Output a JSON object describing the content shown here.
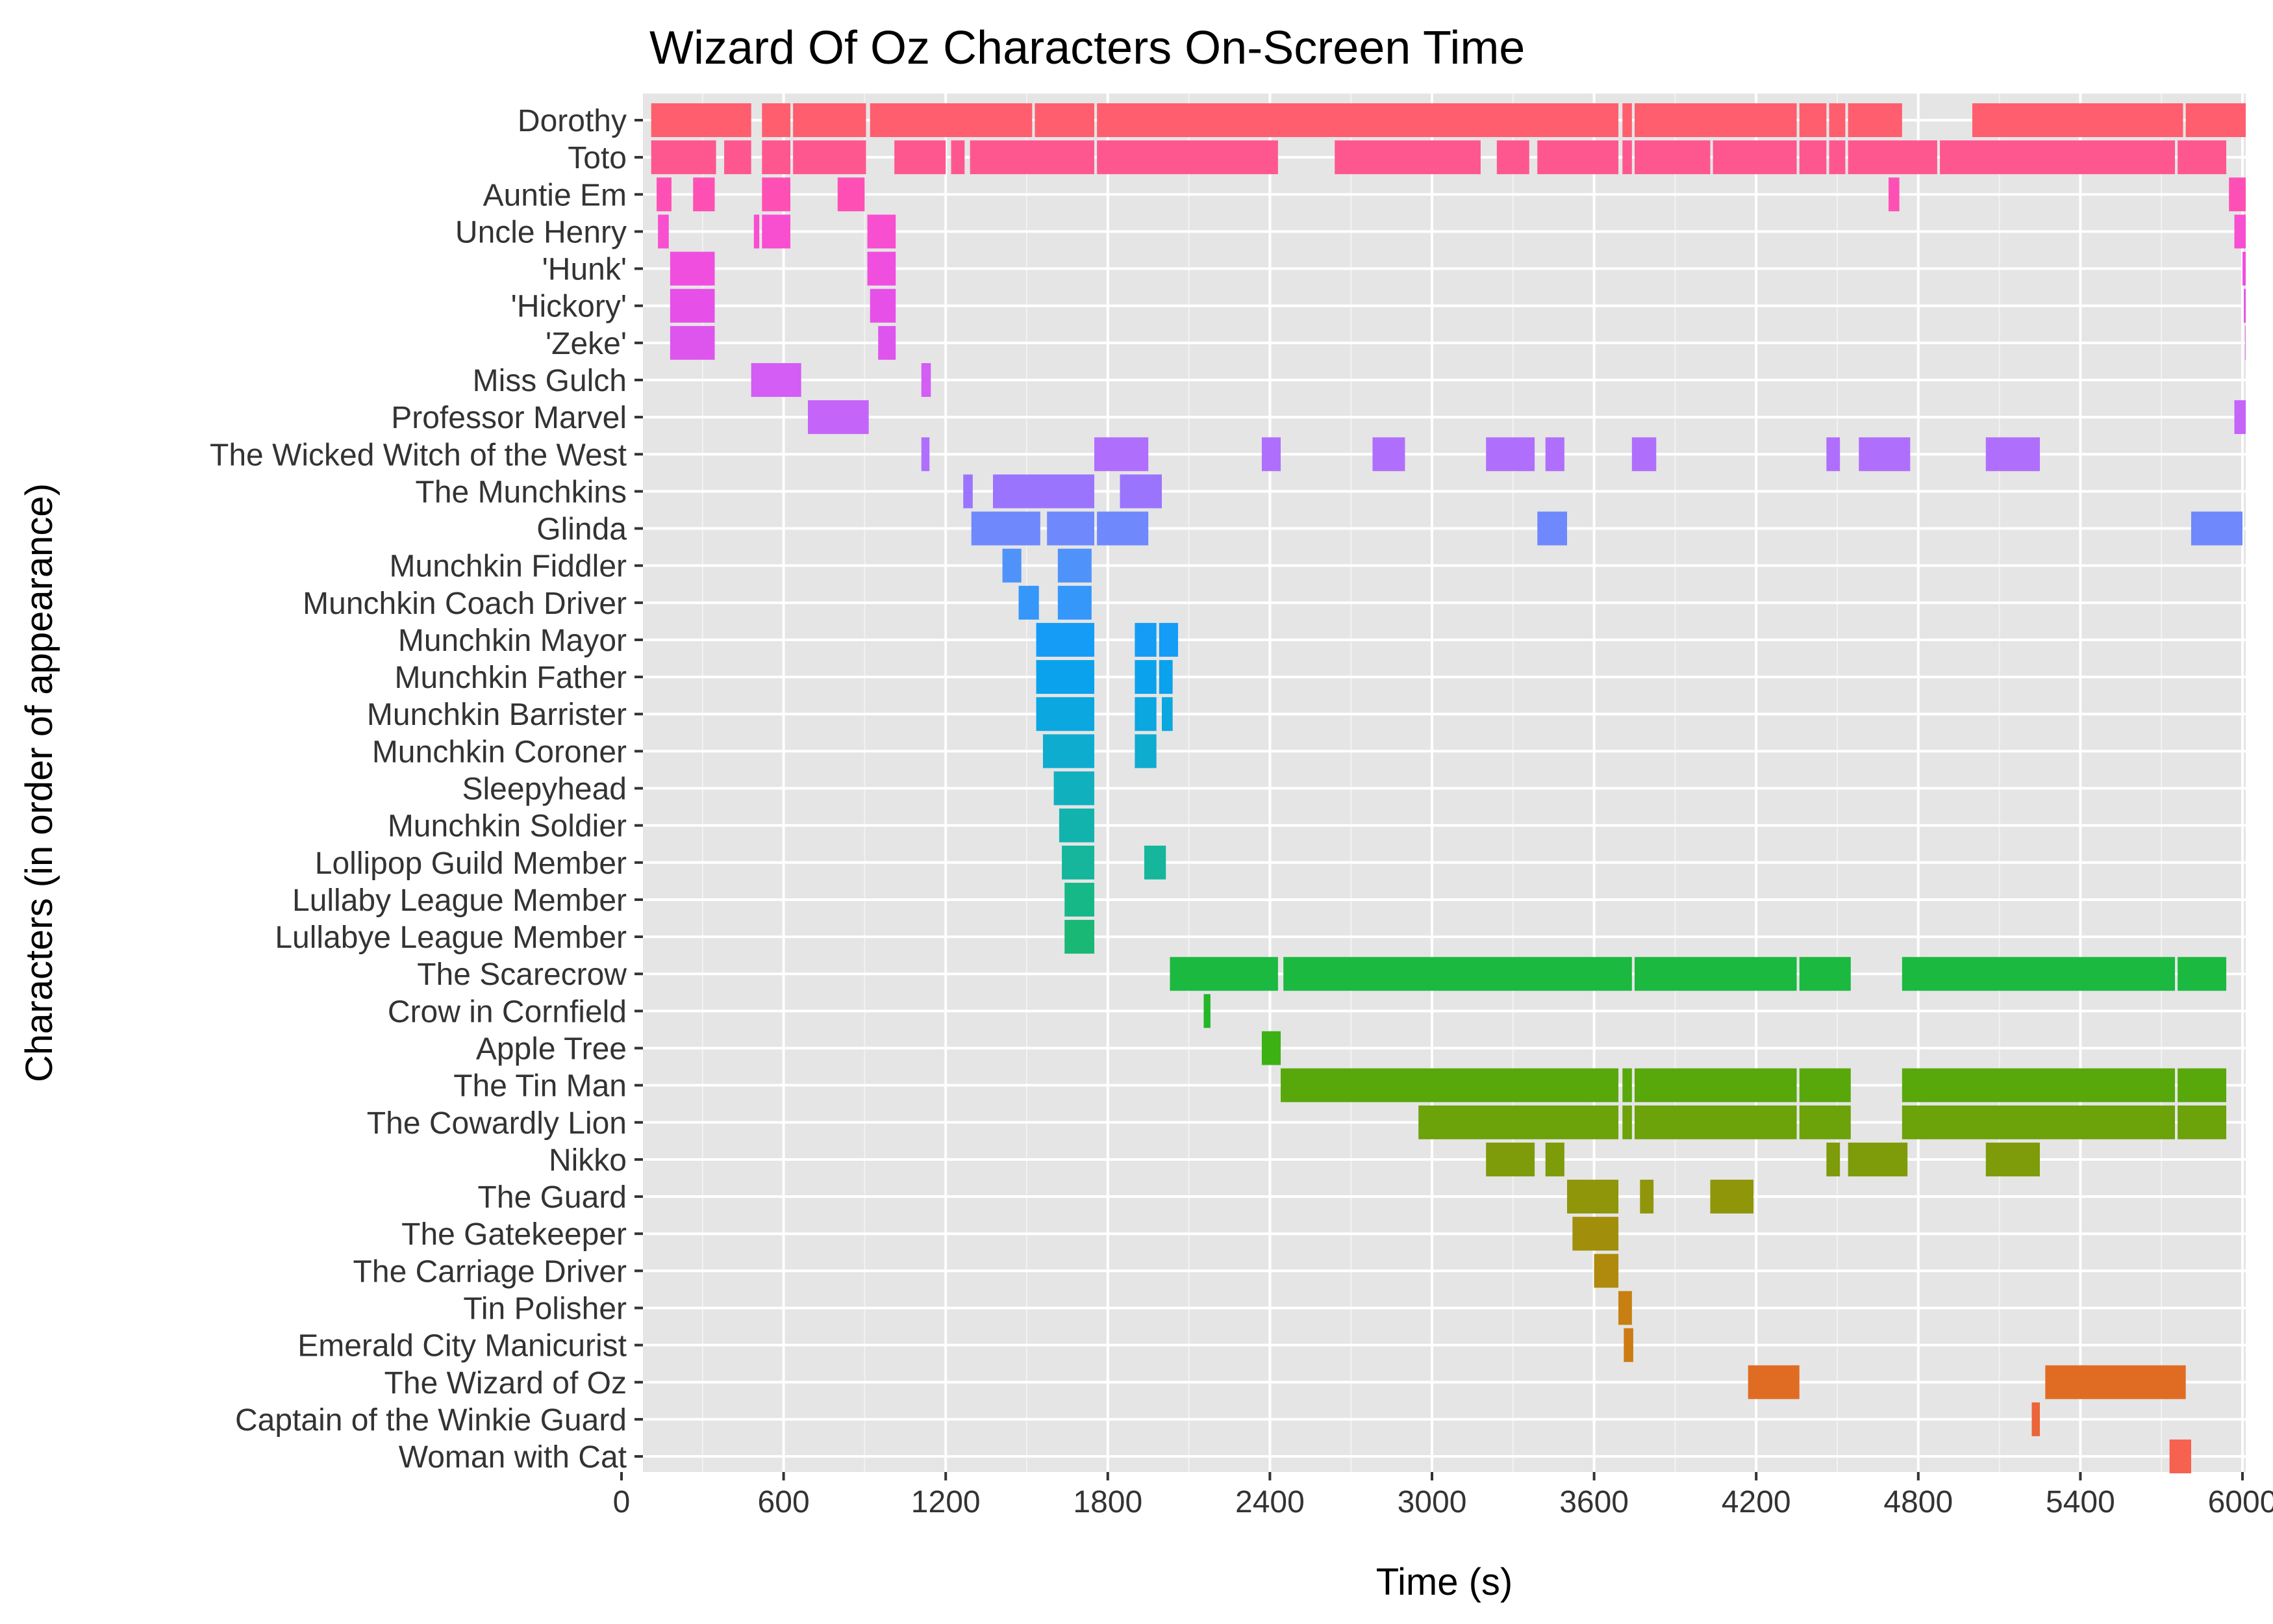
{
  "chart_data": {
    "type": "gantt",
    "title": "Wizard Of Oz Characters On-Screen Time",
    "xlabel": "Time (s)",
    "ylabel": "Characters (in order of appearance)",
    "xlim": [
      0,
      6080
    ],
    "x_ticks": [
      0,
      600,
      1200,
      1800,
      2400,
      3000,
      3600,
      4200,
      4800,
      5400,
      6000
    ],
    "grid": true,
    "legend": "none",
    "series": [
      {
        "name": "Dorothy",
        "color": "#fe5e6e",
        "segments": [
          [
            110,
            480
          ],
          [
            520,
            625
          ],
          [
            635,
            905
          ],
          [
            920,
            1520
          ],
          [
            1530,
            1750
          ],
          [
            1760,
            3690
          ],
          [
            3705,
            3740
          ],
          [
            3750,
            4350
          ],
          [
            4360,
            4460
          ],
          [
            4470,
            4530
          ],
          [
            4540,
            4740
          ],
          [
            5000,
            5780
          ],
          [
            5790,
            6060
          ]
        ]
      },
      {
        "name": "Toto",
        "color": "#fe5790",
        "segments": [
          [
            110,
            350
          ],
          [
            380,
            480
          ],
          [
            520,
            625
          ],
          [
            635,
            905
          ],
          [
            1010,
            1200
          ],
          [
            1220,
            1270
          ],
          [
            1290,
            1750
          ],
          [
            1760,
            2430
          ],
          [
            2640,
            3180
          ],
          [
            3240,
            3360
          ],
          [
            3390,
            3690
          ],
          [
            3705,
            3740
          ],
          [
            3750,
            4030
          ],
          [
            4040,
            4350
          ],
          [
            4360,
            4460
          ],
          [
            4470,
            4530
          ],
          [
            4540,
            4870
          ],
          [
            4880,
            5750
          ],
          [
            5760,
            5940
          ]
        ]
      },
      {
        "name": "Auntie Em",
        "color": "#fe50b4",
        "segments": [
          [
            130,
            185
          ],
          [
            265,
            345
          ],
          [
            520,
            625
          ],
          [
            800,
            900
          ],
          [
            4690,
            4730
          ],
          [
            5950,
            6060
          ]
        ]
      },
      {
        "name": "Uncle Henry",
        "color": "#f84ed0",
        "segments": [
          [
            135,
            175
          ],
          [
            490,
            510
          ],
          [
            520,
            625
          ],
          [
            910,
            1015
          ],
          [
            5970,
            6060
          ]
        ]
      },
      {
        "name": "'Hunk'",
        "color": "#f04edf",
        "segments": [
          [
            180,
            345
          ],
          [
            910,
            1015
          ],
          [
            6000,
            6060
          ]
        ]
      },
      {
        "name": "'Hickory'",
        "color": "#e650e8",
        "segments": [
          [
            180,
            345
          ],
          [
            920,
            1015
          ],
          [
            6005,
            6060
          ]
        ]
      },
      {
        "name": "'Zeke'",
        "color": "#de55ee",
        "segments": [
          [
            180,
            345
          ],
          [
            950,
            1015
          ],
          [
            6010,
            6060
          ]
        ]
      },
      {
        "name": "Miss Gulch",
        "color": "#d35df5",
        "segments": [
          [
            480,
            665
          ],
          [
            1110,
            1145
          ]
        ]
      },
      {
        "name": "Professor Marvel",
        "color": "#c464f9",
        "segments": [
          [
            690,
            915
          ],
          [
            5970,
            6060
          ]
        ]
      },
      {
        "name": "The Wicked Witch of the West",
        "color": "#b06efc",
        "segments": [
          [
            1110,
            1140
          ],
          [
            1750,
            1950
          ],
          [
            2370,
            2440
          ],
          [
            2780,
            2900
          ],
          [
            3200,
            3380
          ],
          [
            3420,
            3490
          ],
          [
            3740,
            3830
          ],
          [
            4460,
            4510
          ],
          [
            4580,
            4770
          ],
          [
            5050,
            5250
          ]
        ]
      },
      {
        "name": "The Munchkins",
        "color": "#9b74fd",
        "segments": [
          [
            1265,
            1300
          ],
          [
            1375,
            1750
          ],
          [
            1845,
            2000
          ]
        ]
      },
      {
        "name": "Glinda",
        "color": "#6f88fb",
        "segments": [
          [
            1295,
            1550
          ],
          [
            1575,
            1750
          ],
          [
            1760,
            1950
          ],
          [
            3390,
            3500
          ],
          [
            5810,
            6000
          ]
        ]
      },
      {
        "name": "Munchkin Fiddler",
        "color": "#4f92fa",
        "segments": [
          [
            1410,
            1480
          ],
          [
            1615,
            1740
          ]
        ]
      },
      {
        "name": "Munchkin Coach Driver",
        "color": "#3597f9",
        "segments": [
          [
            1470,
            1545
          ],
          [
            1615,
            1740
          ]
        ]
      },
      {
        "name": "Munchkin Mayor",
        "color": "#149cf7",
        "segments": [
          [
            1535,
            1750
          ],
          [
            1900,
            1980
          ],
          [
            1990,
            2060
          ]
        ]
      },
      {
        "name": "Munchkin Father",
        "color": "#0aa2ec",
        "segments": [
          [
            1535,
            1750
          ],
          [
            1900,
            1980
          ],
          [
            1990,
            2040
          ]
        ]
      },
      {
        "name": "Munchkin Barrister",
        "color": "#0aa7e0",
        "segments": [
          [
            1535,
            1750
          ],
          [
            1900,
            1980
          ],
          [
            2000,
            2040
          ]
        ]
      },
      {
        "name": "Munchkin Coroner",
        "color": "#0eaccf",
        "segments": [
          [
            1560,
            1750
          ],
          [
            1900,
            1980
          ]
        ]
      },
      {
        "name": "Sleepyhead",
        "color": "#11b0bf",
        "segments": [
          [
            1600,
            1750
          ]
        ]
      },
      {
        "name": "Munchkin Soldier",
        "color": "#13b3ad",
        "segments": [
          [
            1620,
            1750
          ]
        ]
      },
      {
        "name": "Lollipop Guild Member",
        "color": "#15b69b",
        "segments": [
          [
            1630,
            1750
          ],
          [
            1935,
            2015
          ]
        ]
      },
      {
        "name": "Lullaby League Member",
        "color": "#17b888",
        "segments": [
          [
            1640,
            1750
          ]
        ]
      },
      {
        "name": "Lullabye League Member",
        "color": "#19b874",
        "segments": [
          [
            1640,
            1750
          ]
        ]
      },
      {
        "name": "The Scarecrow",
        "color": "#1bb940",
        "segments": [
          [
            2030,
            2430
          ],
          [
            2450,
            3740
          ],
          [
            3750,
            4350
          ],
          [
            4360,
            4550
          ],
          [
            4740,
            5750
          ],
          [
            5760,
            5940
          ]
        ]
      },
      {
        "name": "Crow in Cornfield",
        "color": "#24b628",
        "segments": [
          [
            2155,
            2180
          ]
        ]
      },
      {
        "name": "Apple Tree",
        "color": "#3bb114",
        "segments": [
          [
            2370,
            2440
          ]
        ]
      },
      {
        "name": "The Tin Man",
        "color": "#58a80c",
        "segments": [
          [
            2440,
            3690
          ],
          [
            3705,
            3740
          ],
          [
            3750,
            4350
          ],
          [
            4360,
            4550
          ],
          [
            4740,
            5750
          ],
          [
            5760,
            5940
          ]
        ]
      },
      {
        "name": "The Cowardly Lion",
        "color": "#6ca20a",
        "segments": [
          [
            2950,
            3690
          ],
          [
            3705,
            3740
          ],
          [
            3750,
            4350
          ],
          [
            4360,
            4550
          ],
          [
            4740,
            5750
          ],
          [
            5760,
            5940
          ]
        ]
      },
      {
        "name": "Nikko",
        "color": "#7e9b0a",
        "segments": [
          [
            3200,
            3380
          ],
          [
            3420,
            3490
          ],
          [
            4460,
            4510
          ],
          [
            4540,
            4760
          ],
          [
            5050,
            5250
          ]
        ]
      },
      {
        "name": "The Guard",
        "color": "#8f960a",
        "segments": [
          [
            3500,
            3690
          ],
          [
            3770,
            3820
          ],
          [
            4030,
            4190
          ]
        ]
      },
      {
        "name": "The Gatekeeper",
        "color": "#a18f0b",
        "segments": [
          [
            3520,
            3690
          ]
        ]
      },
      {
        "name": "The Carriage Driver",
        "color": "#b08a0c",
        "segments": [
          [
            3600,
            3690
          ]
        ]
      },
      {
        "name": "Tin Polisher",
        "color": "#c67f10",
        "segments": [
          [
            3690,
            3740
          ]
        ]
      },
      {
        "name": "Emerald City Manicurist",
        "color": "#cd7b12",
        "segments": [
          [
            3710,
            3745
          ]
        ]
      },
      {
        "name": "The Wizard of Oz",
        "color": "#e06c24",
        "segments": [
          [
            4170,
            4360
          ],
          [
            5270,
            5790
          ]
        ]
      },
      {
        "name": "Captain of the Winkie Guard",
        "color": "#eb6538",
        "segments": [
          [
            5220,
            5250
          ]
        ]
      },
      {
        "name": "Woman with Cat",
        "color": "#f66150",
        "segments": [
          [
            5730,
            5810
          ]
        ]
      }
    ]
  }
}
